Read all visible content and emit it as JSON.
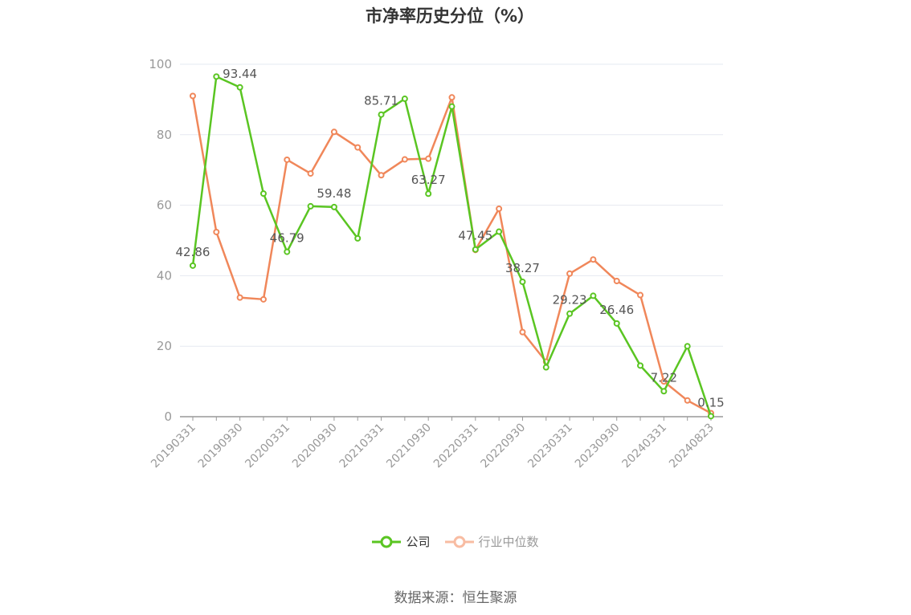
{
  "title": "市净率历史分位（%）",
  "source": "数据来源：恒生聚源",
  "colors": {
    "company": "#5ac522",
    "industry": "#f0875a",
    "industry_legend": "#f8bca2",
    "grid": "#e6e9f0",
    "axis": "#999999",
    "tick_text": "#999999",
    "label_text": "#555555"
  },
  "chart_data": {
    "type": "line",
    "ylim": [
      0,
      100
    ],
    "yticks": [
      0,
      20,
      40,
      60,
      80,
      100
    ],
    "xlabel": "",
    "ylabel": "",
    "x": [
      "20190331",
      "20190630",
      "20190930",
      "20191231",
      "20200331",
      "20200630",
      "20200930",
      "20201231",
      "20210331",
      "20210630",
      "20210930",
      "20211231",
      "20220331",
      "20220630",
      "20220930",
      "20221231",
      "20230331",
      "20230630",
      "20230930",
      "20231231",
      "20240331",
      "20240630",
      "20240823"
    ],
    "xtick_labels": [
      "20190331",
      "20190930",
      "20200331",
      "20200930",
      "20210331",
      "20210930",
      "20220331",
      "20220930",
      "20230331",
      "20230930",
      "20240331",
      "20240823"
    ],
    "legend_position": "bottom",
    "series": [
      {
        "name": "公司",
        "values": [
          42.86,
          96.5,
          93.44,
          63.3,
          46.79,
          59.7,
          59.48,
          50.6,
          85.71,
          90.2,
          63.27,
          88.0,
          47.45,
          52.5,
          38.27,
          14.0,
          29.23,
          34.3,
          26.46,
          14.5,
          7.22,
          20.0,
          0.15
        ]
      },
      {
        "name": "行业中位数",
        "values": [
          91.0,
          52.4,
          33.8,
          33.3,
          72.9,
          69.0,
          80.8,
          76.4,
          68.5,
          73.0,
          73.2,
          90.6,
          47.3,
          59.0,
          24.0,
          15.6,
          40.6,
          44.6,
          38.5,
          34.5,
          10.0,
          4.6,
          1.0
        ]
      }
    ],
    "data_labels": [
      {
        "series": 0,
        "index": 0,
        "text": "42.86"
      },
      {
        "series": 0,
        "index": 2,
        "text": "93.44"
      },
      {
        "series": 0,
        "index": 4,
        "text": "46.79"
      },
      {
        "series": 0,
        "index": 6,
        "text": "59.48"
      },
      {
        "series": 0,
        "index": 8,
        "text": "85.71"
      },
      {
        "series": 0,
        "index": 10,
        "text": "63.27"
      },
      {
        "series": 0,
        "index": 12,
        "text": "47.45"
      },
      {
        "series": 0,
        "index": 14,
        "text": "38.27"
      },
      {
        "series": 0,
        "index": 16,
        "text": "29.23"
      },
      {
        "series": 0,
        "index": 18,
        "text": "26.46"
      },
      {
        "series": 0,
        "index": 20,
        "text": "7.22"
      },
      {
        "series": 0,
        "index": 22,
        "text": "0.15"
      }
    ]
  }
}
